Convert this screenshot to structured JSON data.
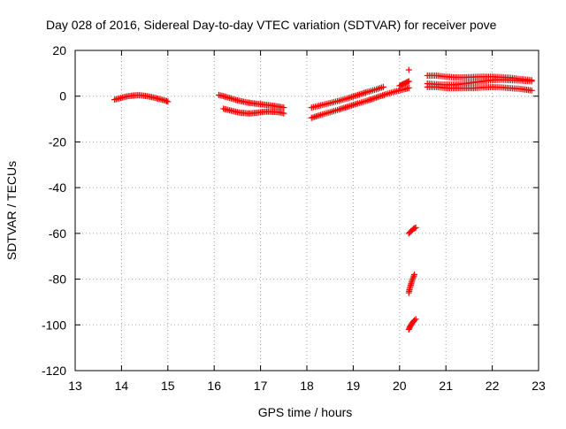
{
  "chart_data": {
    "type": "scatter",
    "title": "Day 028 of 2016, Sidereal Day-to-day VTEC variation (SDTVAR) for receiver pove",
    "xlabel": "GPS time / hours",
    "ylabel": "SDTVAR / TECUs",
    "xlim": [
      13,
      23
    ],
    "ylim": [
      -120,
      20
    ],
    "x_ticks": [
      "13",
      "14",
      "15",
      "16",
      "17",
      "18",
      "19",
      "20",
      "21",
      "22",
      "23"
    ],
    "y_ticks": [
      "20",
      "0",
      "-20",
      "-40",
      "-60",
      "-80",
      "-100",
      "-120"
    ],
    "grid": true,
    "legend": "none",
    "marker": "+",
    "color": "#ff0000",
    "series": [
      {
        "values": [
          [
            13.85,
            -1.5
          ],
          [
            13.95,
            -1
          ],
          [
            14.05,
            -0.4
          ],
          [
            14.15,
            0
          ],
          [
            14.25,
            0.3
          ],
          [
            14.35,
            0.4
          ],
          [
            14.45,
            0.3
          ],
          [
            14.55,
            0
          ],
          [
            14.65,
            -0.4
          ],
          [
            14.75,
            -0.9
          ],
          [
            14.85,
            -1.4
          ],
          [
            14.95,
            -2.0
          ],
          [
            15.0,
            -2.4
          ]
        ]
      },
      {
        "values": [
          [
            16.1,
            0.5
          ],
          [
            16.2,
            0
          ],
          [
            16.3,
            -0.6
          ],
          [
            16.4,
            -1.2
          ],
          [
            16.5,
            -1.8
          ],
          [
            16.6,
            -2.3
          ],
          [
            16.7,
            -2.7
          ],
          [
            16.8,
            -3.0
          ],
          [
            16.9,
            -3.3
          ],
          [
            17.0,
            -3.5
          ],
          [
            17.1,
            -3.8
          ],
          [
            17.2,
            -4.0
          ],
          [
            17.3,
            -4.3
          ],
          [
            17.4,
            -4.6
          ],
          [
            17.5,
            -5.0
          ]
        ]
      },
      {
        "values": [
          [
            16.2,
            -5.5
          ],
          [
            16.3,
            -6.0
          ],
          [
            16.4,
            -6.5
          ],
          [
            16.5,
            -7.0
          ],
          [
            16.6,
            -7.3
          ],
          [
            16.7,
            -7.5
          ],
          [
            16.8,
            -7.5
          ],
          [
            16.9,
            -7.3
          ],
          [
            17.0,
            -7.0
          ],
          [
            17.1,
            -6.8
          ],
          [
            17.2,
            -6.8
          ],
          [
            17.3,
            -6.9
          ],
          [
            17.4,
            -7.0
          ],
          [
            17.5,
            -7.5
          ]
        ]
      },
      {
        "values": [
          [
            18.1,
            -9.5
          ],
          [
            18.3,
            -8.2
          ],
          [
            18.5,
            -7.0
          ],
          [
            18.7,
            -5.8
          ],
          [
            18.9,
            -4.5
          ],
          [
            19.1,
            -3.2
          ],
          [
            19.3,
            -2.0
          ],
          [
            19.5,
            -0.6
          ],
          [
            19.7,
            0.8
          ],
          [
            19.9,
            2.0
          ],
          [
            20.1,
            3.0
          ],
          [
            20.2,
            3.6
          ]
        ]
      },
      {
        "values": [
          [
            18.1,
            -5.0
          ],
          [
            18.3,
            -4.0
          ],
          [
            18.5,
            -3.0
          ],
          [
            18.7,
            -2.0
          ],
          [
            18.9,
            -0.8
          ],
          [
            19.1,
            0.5
          ],
          [
            19.3,
            1.8
          ],
          [
            19.5,
            3.0
          ],
          [
            19.65,
            4.0
          ]
        ]
      },
      {
        "values": [
          [
            20.0,
            4.5
          ],
          [
            20.05,
            5.0
          ],
          [
            20.1,
            5.5
          ],
          [
            20.15,
            6.0
          ],
          [
            20.2,
            6.5
          ]
        ]
      },
      {
        "values": [
          [
            20.2,
            11.5
          ]
        ]
      },
      {
        "values": [
          [
            20.2,
            -60
          ],
          [
            20.25,
            -59
          ],
          [
            20.3,
            -58
          ],
          [
            20.35,
            -57.5
          ]
        ]
      },
      {
        "values": [
          [
            20.2,
            -86
          ],
          [
            20.22,
            -84
          ],
          [
            20.25,
            -82
          ],
          [
            20.28,
            -80
          ],
          [
            20.32,
            -78
          ]
        ]
      },
      {
        "values": [
          [
            20.2,
            -102
          ],
          [
            20.22,
            -101
          ],
          [
            20.25,
            -100
          ],
          [
            20.28,
            -99
          ],
          [
            20.32,
            -98
          ],
          [
            20.35,
            -97.5
          ]
        ]
      },
      {
        "values": [
          [
            20.6,
            9
          ],
          [
            20.8,
            9
          ],
          [
            21.0,
            8.5
          ],
          [
            21.2,
            8.2
          ],
          [
            21.4,
            8.2
          ],
          [
            21.6,
            8.4
          ],
          [
            21.8,
            8.5
          ],
          [
            22.0,
            8.5
          ],
          [
            22.2,
            8.3
          ],
          [
            22.4,
            8.0
          ],
          [
            22.6,
            7.5
          ],
          [
            22.85,
            7.0
          ]
        ]
      },
      {
        "values": [
          [
            20.6,
            5.5
          ],
          [
            20.8,
            5.2
          ],
          [
            21.0,
            5.0
          ],
          [
            21.2,
            5.0
          ],
          [
            21.4,
            5.5
          ],
          [
            21.6,
            6.0
          ],
          [
            21.8,
            6.5
          ],
          [
            22.0,
            7.0
          ],
          [
            22.2,
            7.2
          ],
          [
            22.4,
            7.0
          ],
          [
            22.6,
            6.8
          ],
          [
            22.85,
            6.5
          ]
        ]
      },
      {
        "values": [
          [
            20.6,
            4.0
          ],
          [
            20.8,
            4.0
          ],
          [
            21.0,
            3.5
          ],
          [
            21.2,
            3.5
          ],
          [
            21.4,
            3.5
          ],
          [
            21.6,
            3.5
          ],
          [
            21.8,
            3.8
          ],
          [
            22.0,
            4.0
          ],
          [
            22.2,
            3.8
          ],
          [
            22.4,
            3.5
          ],
          [
            22.6,
            3.2
          ],
          [
            22.85,
            2.5
          ]
        ]
      }
    ]
  }
}
